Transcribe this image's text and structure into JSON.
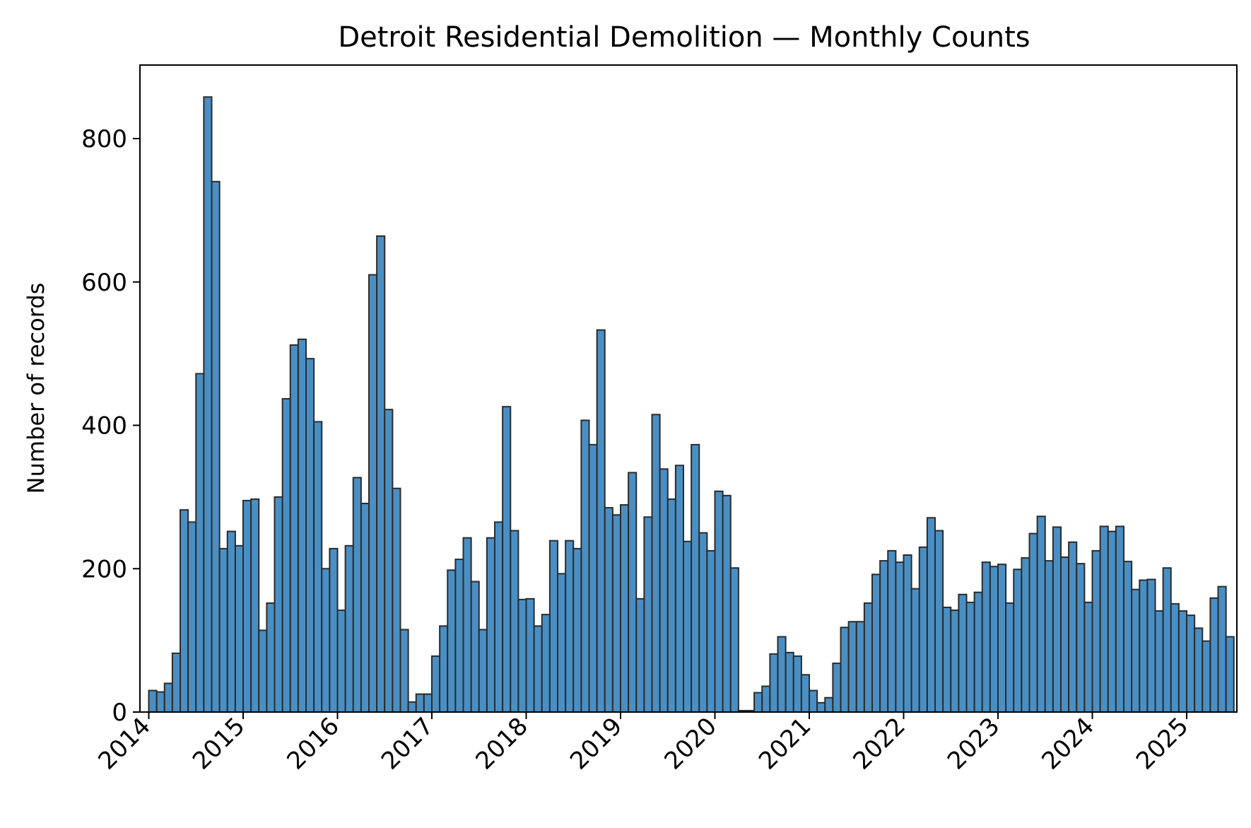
{
  "chart_data": {
    "type": "bar",
    "title": "Detroit Residential Demolition — Monthly Counts",
    "xlabel": "",
    "ylabel": "Number of records",
    "x_start": "2014-01",
    "x_end": "2025-06",
    "ylim": [
      0,
      900
    ],
    "yticks": [
      0,
      200,
      400,
      600,
      800
    ],
    "xticks": [
      "2014",
      "2015",
      "2016",
      "2017",
      "2018",
      "2019",
      "2020",
      "2021",
      "2022",
      "2023",
      "2024",
      "2025"
    ],
    "bar_color": "#4a8fc4",
    "edge_color": "#2b2b2b",
    "grid": false,
    "legend": "none",
    "months": [
      "2014-01",
      "2014-02",
      "2014-03",
      "2014-04",
      "2014-05",
      "2014-06",
      "2014-07",
      "2014-08",
      "2014-09",
      "2014-10",
      "2014-11",
      "2014-12",
      "2015-01",
      "2015-02",
      "2015-03",
      "2015-04",
      "2015-05",
      "2015-06",
      "2015-07",
      "2015-08",
      "2015-09",
      "2015-10",
      "2015-11",
      "2015-12",
      "2016-01",
      "2016-02",
      "2016-03",
      "2016-04",
      "2016-05",
      "2016-06",
      "2016-07",
      "2016-08",
      "2016-09",
      "2016-10",
      "2016-11",
      "2016-12",
      "2017-01",
      "2017-02",
      "2017-03",
      "2017-04",
      "2017-05",
      "2017-06",
      "2017-07",
      "2017-08",
      "2017-09",
      "2017-10",
      "2017-11",
      "2017-12",
      "2018-01",
      "2018-02",
      "2018-03",
      "2018-04",
      "2018-05",
      "2018-06",
      "2018-07",
      "2018-08",
      "2018-09",
      "2018-10",
      "2018-11",
      "2018-12",
      "2019-01",
      "2019-02",
      "2019-03",
      "2019-04",
      "2019-05",
      "2019-06",
      "2019-07",
      "2019-08",
      "2019-09",
      "2019-10",
      "2019-11",
      "2019-12",
      "2020-01",
      "2020-02",
      "2020-03",
      "2020-04",
      "2020-05",
      "2020-06",
      "2020-07",
      "2020-08",
      "2020-09",
      "2020-10",
      "2020-11",
      "2020-12",
      "2021-01",
      "2021-02",
      "2021-03",
      "2021-04",
      "2021-05",
      "2021-06",
      "2021-07",
      "2021-08",
      "2021-09",
      "2021-10",
      "2021-11",
      "2021-12",
      "2022-01",
      "2022-02",
      "2022-03",
      "2022-04",
      "2022-05",
      "2022-06",
      "2022-07",
      "2022-08",
      "2022-09",
      "2022-10",
      "2022-11",
      "2022-12",
      "2023-01",
      "2023-02",
      "2023-03",
      "2023-04",
      "2023-05",
      "2023-06",
      "2023-07",
      "2023-08",
      "2023-09",
      "2023-10",
      "2023-11",
      "2023-12",
      "2024-01",
      "2024-02",
      "2024-03",
      "2024-04",
      "2024-05",
      "2024-06",
      "2024-07",
      "2024-08",
      "2024-09",
      "2024-10",
      "2024-11",
      "2024-12",
      "2025-01",
      "2025-02",
      "2025-03",
      "2025-04",
      "2025-05",
      "2025-06"
    ],
    "values": [
      30,
      28,
      40,
      82,
      282,
      265,
      472,
      858,
      740,
      228,
      252,
      232,
      295,
      297,
      114,
      152,
      300,
      437,
      512,
      520,
      493,
      405,
      200,
      228,
      142,
      232,
      327,
      291,
      610,
      664,
      422,
      312,
      115,
      14,
      25,
      25,
      78,
      120,
      198,
      213,
      243,
      182,
      115,
      243,
      265,
      426,
      253,
      157,
      158,
      120,
      136,
      239,
      193,
      239,
      228,
      407,
      373,
      533,
      285,
      275,
      289,
      334,
      158,
      272,
      415,
      339,
      297,
      344,
      238,
      373,
      250,
      225,
      308,
      302,
      201,
      2,
      2,
      27,
      36,
      81,
      105,
      83,
      78,
      52,
      30,
      13,
      20,
      68,
      118,
      126,
      126,
      152,
      192,
      211,
      225,
      209,
      219,
      172,
      230,
      271,
      253,
      146,
      142,
      164,
      153,
      167,
      209,
      203,
      206,
      152,
      199,
      215,
      249,
      273,
      211,
      258,
      216,
      237,
      207,
      153,
      225,
      259,
      252,
      259,
      210,
      171,
      184,
      185,
      141,
      201,
      151,
      141,
      135,
      117,
      99,
      159,
      175,
      105
    ]
  }
}
